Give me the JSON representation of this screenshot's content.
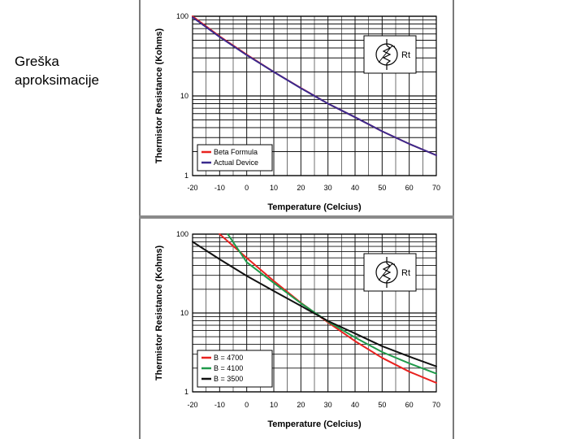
{
  "slide": {
    "label_lines": [
      "Greška",
      "aproksimacije"
    ]
  },
  "chart_data": [
    {
      "type": "line",
      "xlabel": "Temperature (Celcius)",
      "ylabel": "Thermistor Resistance (Kohms)",
      "xlim": [
        -20,
        70
      ],
      "ylim": [
        1,
        100
      ],
      "yscale": "log",
      "grid": true,
      "legend_position": "bottom-left",
      "x_ticks": [
        "-20",
        "-10",
        "0",
        "10",
        "20",
        "30",
        "40",
        "50",
        "60",
        "70"
      ],
      "y_ticks": [
        "1",
        "10",
        "100"
      ],
      "symbol_label": "Rt",
      "series": [
        {
          "name": "Beta Formula",
          "color": "#e8221f",
          "x": [
            -20,
            -10,
            0,
            10,
            20,
            30,
            40,
            50,
            60,
            70
          ],
          "values": [
            100,
            56,
            33,
            20,
            12.6,
            8.0,
            5.4,
            3.6,
            2.5,
            1.8
          ]
        },
        {
          "name": "Actual Device",
          "color": "#3a2a8e",
          "x": [
            -20,
            -10,
            0,
            10,
            20,
            30,
            40,
            50,
            60,
            70
          ],
          "values": [
            97,
            55,
            32.5,
            20,
            12.5,
            8.0,
            5.4,
            3.6,
            2.5,
            1.8
          ]
        }
      ]
    },
    {
      "type": "line",
      "xlabel": "Temperature (Celcius)",
      "ylabel": "Thermistor Resistance (Kohms)",
      "xlim": [
        -20,
        70
      ],
      "ylim": [
        1,
        100
      ],
      "yscale": "log",
      "grid": true,
      "legend_position": "bottom-left",
      "x_ticks": [
        "-20",
        "-10",
        "0",
        "10",
        "20",
        "30",
        "40",
        "50",
        "60",
        "70"
      ],
      "y_ticks": [
        "1",
        "10",
        "100"
      ],
      "symbol_label": "Rt",
      "series": [
        {
          "name": "B = 4700",
          "color": "#e8221f",
          "x": [
            -10,
            0,
            10,
            20,
            30,
            40,
            50,
            60,
            70
          ],
          "values": [
            100,
            50,
            25.5,
            13.5,
            7.6,
            4.4,
            2.7,
            1.8,
            1.3
          ]
        },
        {
          "name": "B = 4100",
          "color": "#1f9a4a",
          "x": [
            -7,
            0,
            10,
            20,
            30,
            40,
            50,
            60,
            70
          ],
          "values": [
            100,
            44,
            24,
            13.3,
            7.8,
            4.9,
            3.2,
            2.3,
            1.7
          ]
        },
        {
          "name": "B = 3500",
          "color": "#111111",
          "x": [
            -20,
            -10,
            0,
            10,
            20,
            30,
            40,
            50,
            60,
            70
          ],
          "values": [
            80,
            48,
            29.5,
            19,
            12.3,
            7.9,
            5.5,
            3.8,
            2.8,
            2.1
          ]
        }
      ]
    }
  ]
}
